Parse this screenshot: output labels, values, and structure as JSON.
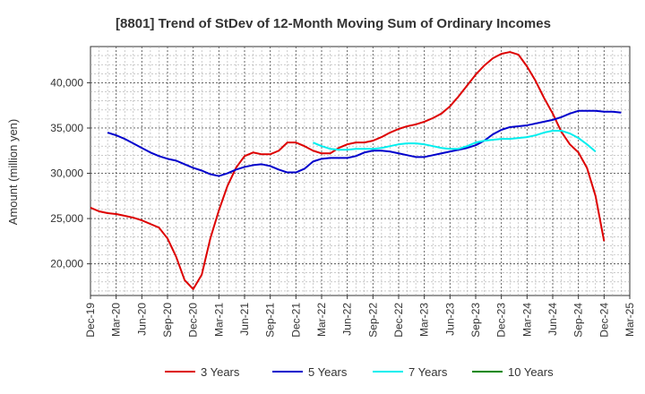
{
  "chart_data": {
    "type": "line",
    "title": "[8801]  Trend of StDev of 12-Month Moving Sum of Ordinary Incomes",
    "xlabel": "",
    "ylabel": "Amount (million yen)",
    "ylim": [
      16500,
      44000
    ],
    "y_ticks": [
      20000,
      25000,
      30000,
      35000,
      40000
    ],
    "y_tick_labels": [
      "20,000",
      "25,000",
      "30,000",
      "35,000",
      "40,000"
    ],
    "x_tick_labels": [
      "Dec-19",
      "Mar-20",
      "Jun-20",
      "Sep-20",
      "Dec-20",
      "Mar-21",
      "Jun-21",
      "Sep-21",
      "Dec-21",
      "Mar-22",
      "Jun-22",
      "Sep-22",
      "Dec-22",
      "Mar-23",
      "Jun-23",
      "Sep-23",
      "Dec-23",
      "Mar-24",
      "Jun-24",
      "Sep-24",
      "Dec-24",
      "Mar-25"
    ],
    "x_start_label": "Dec-19",
    "x_count_months": 63,
    "grid": true,
    "legend_position": "bottom",
    "series": [
      {
        "name": "3 Years",
        "color": "#dd0000",
        "start_index": 0,
        "values": [
          26200,
          25800,
          25600,
          25500,
          25300,
          25100,
          24800,
          24400,
          24000,
          22800,
          20800,
          18200,
          17200,
          18800,
          22800,
          25900,
          28600,
          30600,
          31900,
          32300,
          32100,
          32100,
          32500,
          33400,
          33400,
          33000,
          32500,
          32200,
          32200,
          32800,
          33200,
          33400,
          33400,
          33600,
          34000,
          34500,
          34900,
          35200,
          35400,
          35700,
          36100,
          36600,
          37400,
          38500,
          39700,
          40900,
          41900,
          42700,
          43200,
          43400,
          43100,
          41800,
          40200,
          38300,
          36600,
          34600,
          33200,
          32300,
          30600,
          27500,
          22500
        ]
      },
      {
        "name": "5 Years",
        "color": "#0000cc",
        "start_index": 2,
        "values": [
          34500,
          34200,
          33800,
          33300,
          32800,
          32300,
          31900,
          31600,
          31400,
          31000,
          30600,
          30300,
          29900,
          29700,
          30000,
          30400,
          30700,
          30900,
          31000,
          30800,
          30400,
          30100,
          30100,
          30500,
          31300,
          31600,
          31700,
          31700,
          31700,
          31900,
          32300,
          32500,
          32500,
          32400,
          32200,
          32000,
          31800,
          31800,
          32000,
          32200,
          32400,
          32600,
          32800,
          33100,
          33600,
          34300,
          34800,
          35100,
          35200,
          35300,
          35500,
          35700,
          35900,
          36200,
          36600,
          36900,
          36900,
          36900,
          36800,
          36800,
          36700
        ]
      },
      {
        "name": "7 Years",
        "color": "#00eeee",
        "start_index": 26,
        "values": [
          33400,
          33000,
          32700,
          32600,
          32600,
          32700,
          32700,
          32700,
          32800,
          33000,
          33200,
          33300,
          33300,
          33200,
          33000,
          32800,
          32700,
          32700,
          33000,
          33400,
          33600,
          33700,
          33800,
          33800,
          33900,
          34000,
          34200,
          34500,
          34700,
          34700,
          34400,
          33900,
          33200,
          32400
        ]
      },
      {
        "name": "10 Years",
        "color": "#008800",
        "start_index": 0,
        "values": []
      }
    ]
  }
}
